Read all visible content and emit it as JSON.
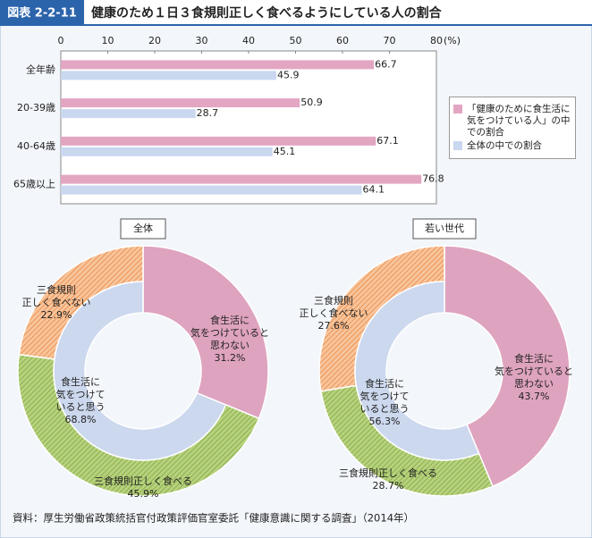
{
  "header": {
    "tag": "図表 2-2-11",
    "title": "健康のため１日３食規則正しく食べるようにしている人の割合"
  },
  "source": "資料：厚生労働省政策統括官付政策評価官室委託「健康意識に関する調査」（2014年）",
  "chart_data": [
    {
      "type": "hbar",
      "categories": [
        "全年齢",
        "20-39歳",
        "40-64歳",
        "65歳以上"
      ],
      "series": [
        {
          "name": "「健康のために食生活に気をつけている人」の中での割合",
          "color": "#e3a6c2",
          "values": [
            66.7,
            50.9,
            67.1,
            76.8
          ]
        },
        {
          "name": "全体の中での割合",
          "color": "#c9d7ef",
          "values": [
            45.9,
            28.7,
            45.1,
            64.1
          ]
        }
      ],
      "xlim": [
        0,
        80
      ],
      "xticks": [
        0,
        10,
        20,
        30,
        40,
        50,
        60,
        70,
        80
      ],
      "x_unit": "(%)",
      "grid": false,
      "legend": "right"
    },
    {
      "type": "donut",
      "title": "全体",
      "categories": [
        [
          "食生活に",
          "気をつけていると",
          "思わない"
        ],
        [
          "三食規則正しく食べる"
        ],
        [
          "三食規則",
          "正しく食べない"
        ],
        [
          "食生活に",
          "気をつけて",
          "いると思う"
        ]
      ],
      "values": [
        31.2,
        45.9,
        22.9,
        68.8
      ],
      "value_labels": [
        "31.2%",
        "45.9%",
        "22.9%",
        "68.8%"
      ],
      "rings": [
        "full",
        "outer",
        "outer",
        "inner"
      ],
      "colors": [
        "#dea3bf",
        "#a9c66f",
        "#f3b07c",
        "#ccd8ee"
      ]
    },
    {
      "type": "donut",
      "title": "若い世代",
      "categories": [
        [
          "食生活に",
          "気をつけていると",
          "思わない"
        ],
        [
          "三食規則正しく食べる"
        ],
        [
          "三食規則",
          "正しく食べない"
        ],
        [
          "食生活に",
          "気をつけて",
          "いると思う"
        ]
      ],
      "values": [
        43.7,
        28.7,
        27.6,
        56.3
      ],
      "value_labels": [
        "43.7%",
        "28.7%",
        "27.6%",
        "56.3%"
      ],
      "rings": [
        "full",
        "outer",
        "outer",
        "inner"
      ],
      "colors": [
        "#dea3bf",
        "#a9c66f",
        "#f3b07c",
        "#ccd8ee"
      ]
    }
  ]
}
